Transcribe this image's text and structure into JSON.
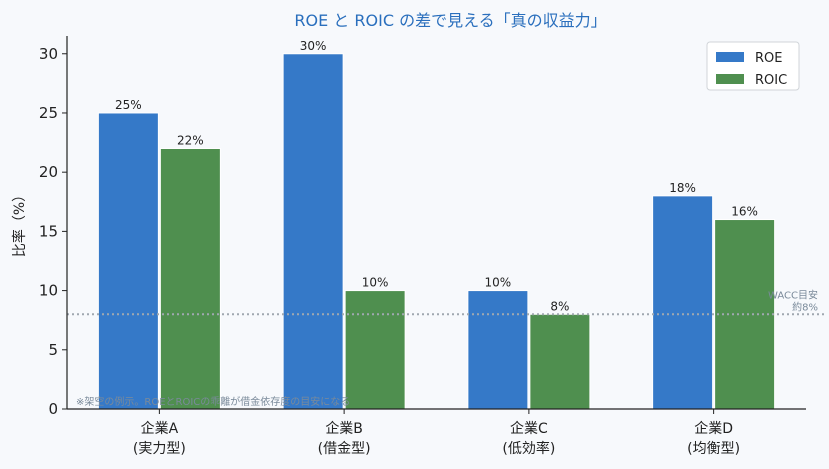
{
  "chart_data": {
    "type": "bar",
    "title": "ROE と ROIC の差で見える「真の収益力」",
    "ylabel": "比率（%）",
    "xlabel": "",
    "ylim": [
      0,
      31.5
    ],
    "yticks": [
      "0",
      "5",
      "10",
      "15",
      "20",
      "25",
      "30"
    ],
    "categories": [
      [
        "企業A",
        "(実力型)"
      ],
      [
        "企業B",
        "(借金型)"
      ],
      [
        "企業C",
        "(低効率)"
      ],
      [
        "企業D",
        "(均衡型)"
      ]
    ],
    "series": [
      {
        "name": "ROE",
        "color": "#3579c8",
        "values": [
          25,
          30,
          10,
          18
        ],
        "labels": [
          "25%",
          "30%",
          "10%",
          "18%"
        ]
      },
      {
        "name": "ROIC",
        "color": "#4f8f4f",
        "values": [
          22,
          10,
          8,
          16
        ],
        "labels": [
          "22%",
          "10%",
          "8%",
          "16%"
        ]
      }
    ],
    "reference_line": {
      "value": 8,
      "label_lines": [
        "WACC目安",
        "約8%"
      ],
      "color": "#a0a8b0"
    },
    "footnote": "※架空の例示。ROEとROICの乖離が借金依存度の目安になる",
    "legend_position": "top-right",
    "grid": false
  }
}
